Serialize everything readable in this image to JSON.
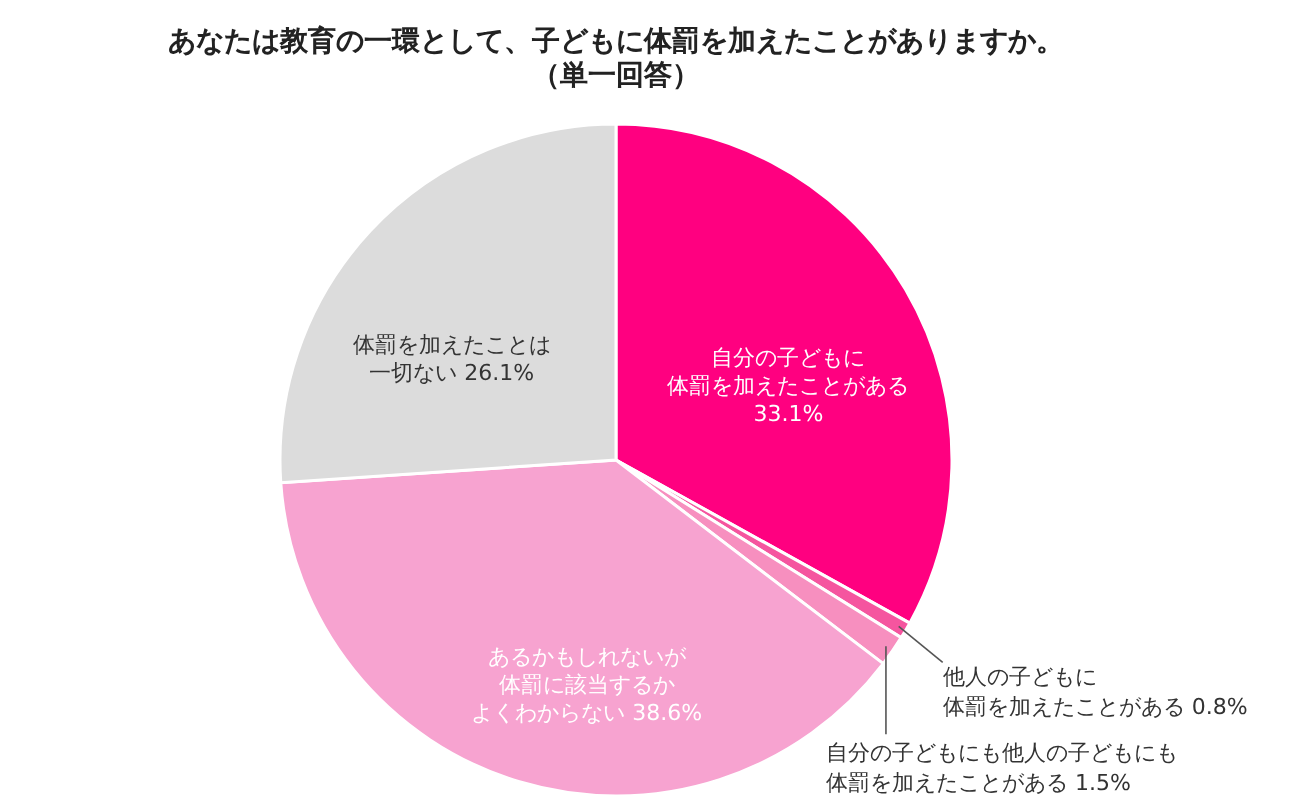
{
  "chart_data": {
    "type": "pie",
    "title": "あなたは教育の一環として、子どもに体罰を加えたことがありますか。",
    "subtitle": "（単一回答）",
    "categories": [
      "自分の子どもに体罰を加えたことがある",
      "他人の子どもに体罰を加えたことがある",
      "自分の子どもにも他人の子どもにも体罰を加えたことがある",
      "あるかもしれないが体罰に該当するかよくわからない",
      "体罰を加えたことは一切ない"
    ],
    "values": [
      33.1,
      0.8,
      1.5,
      38.6,
      26.1
    ],
    "colors": [
      "#ff0080",
      "#f5559f",
      "#f78fbf",
      "#f7a3d0",
      "#dcdcdc"
    ],
    "value_labels": [
      "33.1%",
      "0.8%",
      "1.5%",
      "38.6%",
      "26.1%"
    ]
  }
}
